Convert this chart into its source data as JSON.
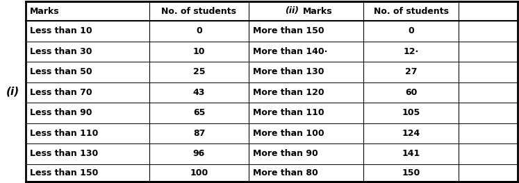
{
  "col1_header": "Marks",
  "col2_header": "No. of students",
  "col3_header": "(ii)  Marks",
  "col4_header": "No. of students",
  "col1_data": [
    "Less than 10",
    "Less than 30",
    "Less than 50",
    "Less than 70",
    "Less than 90",
    "Less than 110",
    "Less than 130",
    "Less than 150"
  ],
  "col2_data": [
    "0",
    "10",
    "25",
    "43",
    "65",
    "87",
    "96",
    "100"
  ],
  "col3_data": [
    "More than 150",
    "More than 140·",
    "More than 130",
    "More than 120",
    "More than 110",
    "More than 100",
    "More than 90",
    "More than 80"
  ],
  "col4_data": [
    "0",
    "12·",
    "27",
    "60",
    "105",
    "124",
    "141",
    "150"
  ],
  "bg_color": "#ffffff",
  "border_color": "#000000",
  "text_color": "#000000",
  "figsize": [
    7.47,
    2.64
  ],
  "dpi": 100
}
